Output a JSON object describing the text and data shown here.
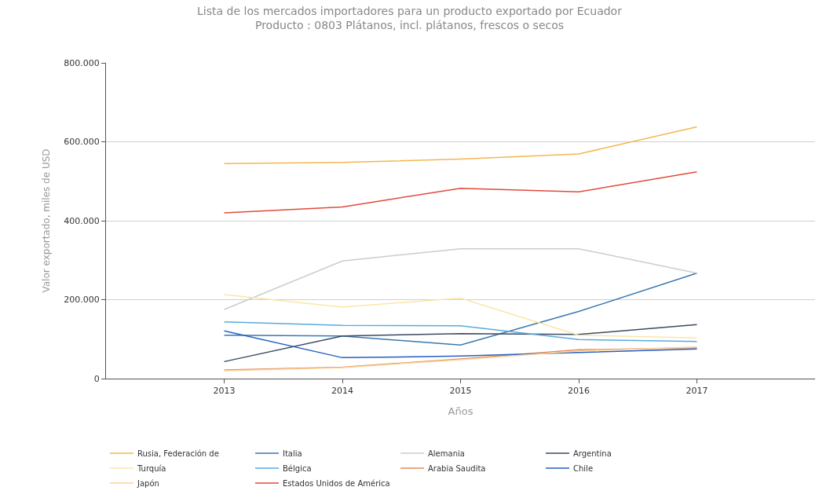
{
  "chart_data": {
    "type": "line",
    "title": "Lista de los mercados importadores para un producto exportado por Ecuador",
    "subtitle": "Producto : 0803 Plátanos, incl. plátanos, frescos o secos",
    "xlabel": "Años",
    "ylabel": "Valor exportado, miles de USD",
    "x": [
      2013,
      2014,
      2015,
      2016,
      2017
    ],
    "xlim": [
      2012,
      2018
    ],
    "xticks": [
      2013,
      2014,
      2015,
      2016,
      2017
    ],
    "ylim": [
      0,
      800000
    ],
    "yticks": [
      {
        "value": 0,
        "label": "0"
      },
      {
        "value": 200000,
        "label": "200.000"
      },
      {
        "value": 400000,
        "label": "400.000"
      },
      {
        "value": 600000,
        "label": "600.000"
      },
      {
        "value": 800000,
        "label": "800.000"
      }
    ],
    "grid": "y",
    "legend": "bottom",
    "marker": "none",
    "line_style": "solid",
    "series": [
      {
        "name": "Rusia, Federación de",
        "color": "#f5b651",
        "values": [
          545000,
          548000,
          556000,
          569000,
          638000
        ]
      },
      {
        "name": "Italia",
        "color": "#3a77b0",
        "values": [
          110000,
          108000,
          85000,
          170000,
          267000
        ]
      },
      {
        "name": "Alemania",
        "color": "#cccccc",
        "values": [
          175000,
          298000,
          329000,
          329000,
          267000
        ]
      },
      {
        "name": "Argentina",
        "color": "#3b4a63",
        "values": [
          43000,
          108000,
          114000,
          112000,
          137000
        ]
      },
      {
        "name": "Turquía",
        "color": "#fbe6a8",
        "values": [
          213000,
          181000,
          204000,
          110000,
          103000
        ]
      },
      {
        "name": "Bélgica",
        "color": "#5aa9e0",
        "values": [
          144000,
          135000,
          134000,
          99000,
          94000
        ]
      },
      {
        "name": "Arabia Saudita",
        "color": "#e8875a",
        "values": [
          22000,
          29000,
          50000,
          73000,
          78000
        ]
      },
      {
        "name": "Chile",
        "color": "#2460c4",
        "values": [
          121000,
          53000,
          57000,
          66000,
          75000
        ]
      },
      {
        "name": "Japón",
        "color": "#f8d49a",
        "values": [
          20000,
          28000,
          48000,
          70000,
          80000
        ]
      },
      {
        "name": "Estados Unidos de América",
        "color": "#e24a3b",
        "values": [
          420000,
          435000,
          482000,
          473000,
          524000
        ]
      }
    ]
  }
}
